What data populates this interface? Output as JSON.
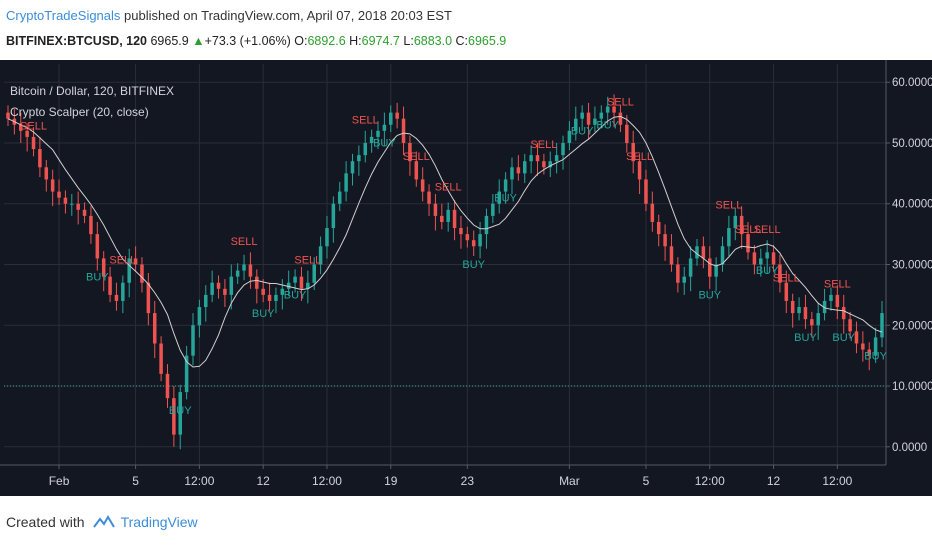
{
  "header": {
    "author": "CryptoTradeSignals",
    "published_text": " published on TradingView.com, April 07, 2018 20:03 EST",
    "symbol": "BITFINEX:BTCUSD, 120",
    "last": "6965.9",
    "change": "+73.3 (+1.06%)",
    "o_label": "O:",
    "o_value": "6892.6",
    "h_label": "H:",
    "h_value": "6974.7",
    "l_label": "L:",
    "l_value": "6883.0",
    "c_label": "C:",
    "c_value": "6965.9"
  },
  "footer": {
    "created_with": "Created with",
    "brand": "TradingView"
  },
  "chart_data": {
    "type": "candlestick",
    "legend": [
      "Bitcoin / Dollar, 120, BITFINEX",
      "Crypto Scalper (20, close)"
    ],
    "y_ticks": [
      "60.0000",
      "50.0000",
      "40.0000",
      "30.0000",
      "20.0000",
      "10.0000",
      "0.0000"
    ],
    "y_tick_values": [
      60,
      50,
      40,
      30,
      20,
      10,
      0
    ],
    "ylim": [
      -3,
      63
    ],
    "x_ticks": [
      {
        "label": "Feb",
        "i": 8
      },
      {
        "label": "5",
        "i": 20
      },
      {
        "label": "12:00",
        "i": 30
      },
      {
        "label": "12",
        "i": 40
      },
      {
        "label": "12:00",
        "i": 50
      },
      {
        "label": "19",
        "i": 60
      },
      {
        "label": "23",
        "i": 72
      },
      {
        "label": "Mar",
        "i": 88
      },
      {
        "label": "5",
        "i": 100
      },
      {
        "label": "12:00",
        "i": 110
      },
      {
        "label": "12",
        "i": 120
      },
      {
        "label": "12:00",
        "i": 130
      }
    ],
    "close": [
      54,
      53,
      52,
      51,
      49,
      46,
      44,
      42,
      41,
      40,
      40,
      39,
      38,
      35,
      31,
      28,
      25,
      24,
      27,
      31,
      30,
      27,
      22,
      17,
      12,
      8,
      2,
      9,
      15,
      20,
      23,
      25,
      27,
      26,
      25,
      28,
      29,
      30,
      28,
      26,
      25,
      24,
      25,
      26,
      27,
      28,
      26,
      27,
      30,
      33,
      36,
      40,
      42,
      45,
      47,
      48,
      50,
      51,
      52,
      53,
      55,
      54,
      50,
      47,
      44,
      42,
      40,
      38,
      37,
      39,
      36,
      35,
      34,
      33,
      35,
      38,
      40,
      42,
      44,
      46,
      45,
      47,
      48,
      47,
      46,
      47,
      48,
      50,
      52,
      54,
      55,
      53,
      54,
      55,
      56,
      55,
      53,
      50,
      47,
      44,
      40,
      37,
      35,
      33,
      30,
      27,
      28,
      31,
      33,
      31,
      28,
      30,
      33,
      36,
      38,
      35,
      32,
      30,
      31,
      32,
      30,
      27,
      24,
      22,
      23,
      21,
      20,
      22,
      24,
      25,
      23,
      21,
      19,
      17,
      16,
      15,
      18,
      22
    ],
    "sell_signals": [
      4,
      18,
      37,
      47,
      56,
      64,
      69,
      84,
      96,
      99,
      113,
      116,
      119,
      122,
      130
    ],
    "buy_signals": [
      14,
      27,
      40,
      45,
      59,
      73,
      78,
      90,
      94,
      110,
      119,
      125,
      131,
      136
    ],
    "sell_label": "SELL",
    "buy_label": "BUY",
    "reference_line": 10,
    "colors": {
      "background": "#131722",
      "grid": "#2a2e39",
      "axis_text": "#d1d4dc",
      "up": "#26a69a",
      "down": "#ef5350",
      "sma": "#d0d0d0",
      "sell": "#ef5350",
      "buy": "#26a69a",
      "reference_line": "#3fa9a0"
    }
  }
}
